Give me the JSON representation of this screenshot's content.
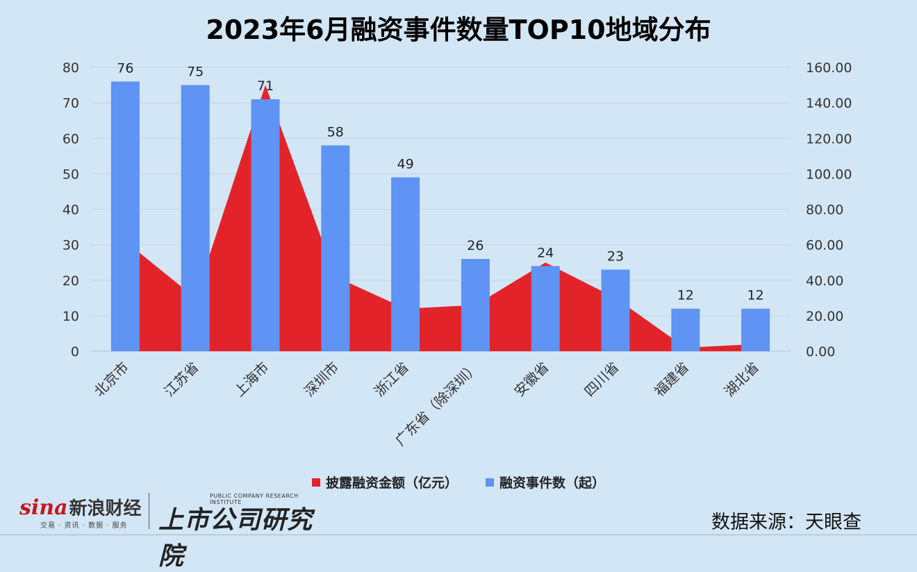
{
  "title": "2023年6月融资事件数量TOP10地域分布",
  "chart_data": {
    "type": "bar+area",
    "categories": [
      "北京市",
      "江苏省",
      "上海市",
      "深圳市",
      "浙江省",
      "广东省（除深圳）",
      "安徽省",
      "四川省",
      "福建省",
      "湖北省"
    ],
    "series": [
      {
        "name": "融资事件数（起）",
        "type": "bar",
        "axis": "left",
        "color": "#5f93f4",
        "values": [
          76,
          75,
          71,
          58,
          49,
          26,
          24,
          23,
          12,
          12
        ]
      },
      {
        "name": "披露融资金额（亿元）",
        "type": "area",
        "axis": "right",
        "color": "#e3232a",
        "values": [
          62,
          30,
          150,
          42,
          24,
          26,
          50,
          30,
          2,
          4
        ]
      }
    ],
    "y_left": {
      "min": 0,
      "max": 80,
      "ticks": [
        "0",
        "10",
        "20",
        "30",
        "40",
        "50",
        "60",
        "70",
        "80"
      ]
    },
    "y_right": {
      "min": 0,
      "max": 160,
      "ticks": [
        "0.00",
        "20.00",
        "40.00",
        "60.00",
        "80.00",
        "100.00",
        "120.00",
        "140.00",
        "160.00"
      ]
    },
    "grid": true,
    "legend_position": "bottom"
  },
  "legend": [
    {
      "label": "披露融资金额（亿元）",
      "color": "#e3232a"
    },
    {
      "label": "融资事件数（起）",
      "color": "#5f93f4"
    }
  ],
  "source": "数据来源：天眼查",
  "logos": {
    "sina_word": "sina",
    "sina_cn": "新浪财经",
    "sina_sub": "交易 · 资讯 · 数据 · 服务",
    "inst_cn": "上市公司研究院",
    "inst_en": "PUBLIC COMPANY RESEARCH INSTITUTE"
  }
}
